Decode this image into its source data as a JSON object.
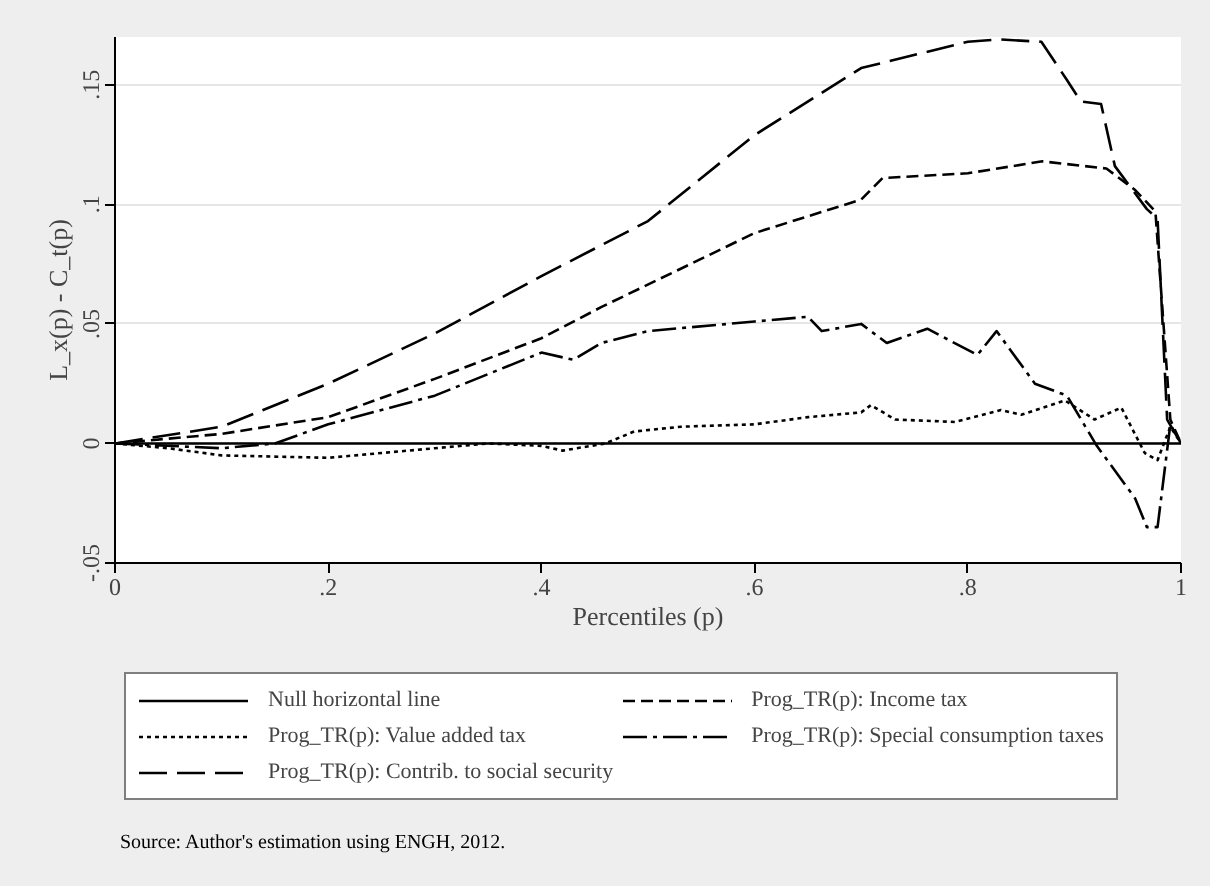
{
  "chart_data": {
    "type": "line",
    "xlabel": "Percentiles (p)",
    "ylabel": "L_x(p) - C_t(p)",
    "xlim": [
      0,
      1
    ],
    "ylim": [
      -0.05,
      0.17
    ],
    "xticks": [
      {
        "value": 0,
        "label": "0"
      },
      {
        "value": 0.2,
        "label": ".2"
      },
      {
        "value": 0.4,
        "label": ".4"
      },
      {
        "value": 0.6,
        "label": ".6"
      },
      {
        "value": 0.8,
        "label": ".8"
      },
      {
        "value": 1,
        "label": "1"
      }
    ],
    "yticks": [
      {
        "value": -0.05,
        "label": "-.05"
      },
      {
        "value": 0,
        "label": "0"
      },
      {
        "value": 0.05,
        "label": ".05"
      },
      {
        "value": 0.1,
        "label": ".1"
      },
      {
        "value": 0.15,
        "label": ".15"
      }
    ],
    "grid": "y",
    "legend": "bottom",
    "marker": "none",
    "annotations": [
      "Source: Author's estimation using ENGH, 2012."
    ],
    "series": [
      {
        "name": "Null horizontal line",
        "color": "#000000",
        "line_style": "solid",
        "x": [
          0,
          1
        ],
        "values": [
          0,
          0
        ]
      },
      {
        "name": "Prog_TR(p): Income tax",
        "color": "#000000",
        "line_style": "dashed",
        "x": [
          0,
          0.1,
          0.2,
          0.3,
          0.4,
          0.456,
          0.6,
          0.7,
          0.72,
          0.8,
          0.87,
          0.93,
          0.957,
          0.976,
          0.99,
          1
        ],
        "values": [
          0,
          0.004,
          0.011,
          0.027,
          0.044,
          0.057,
          0.088,
          0.102,
          0.111,
          0.113,
          0.118,
          0.115,
          0.106,
          0.097,
          0.01,
          0
        ]
      },
      {
        "name": "Prog_TR(p): Value added tax",
        "color": "#000000",
        "line_style": "dotted",
        "x": [
          0,
          0.05,
          0.1,
          0.2,
          0.3,
          0.35,
          0.4,
          0.42,
          0.46,
          0.487,
          0.531,
          0.6,
          0.65,
          0.7,
          0.709,
          0.732,
          0.788,
          0.831,
          0.85,
          0.891,
          0.919,
          0.944,
          0.966,
          0.978,
          0.99,
          1
        ],
        "values": [
          0,
          -0.002,
          -0.005,
          -0.006,
          -0.002,
          0,
          -0.001,
          -0.003,
          0,
          0.005,
          0.007,
          0.008,
          0.011,
          0.013,
          0.016,
          0.01,
          0.009,
          0.014,
          0.012,
          0.018,
          0.01,
          0.015,
          -0.004,
          -0.007,
          0.007,
          0
        ]
      },
      {
        "name": "Prog_TR(p): Special consumption taxes",
        "color": "#000000",
        "line_style": "dashdot",
        "x": [
          0,
          0.1,
          0.15,
          0.2,
          0.3,
          0.4,
          0.43,
          0.456,
          0.5,
          0.6,
          0.65,
          0.663,
          0.7,
          0.724,
          0.762,
          0.809,
          0.827,
          0.863,
          0.893,
          0.921,
          0.957,
          0.968,
          0.978,
          0.99,
          1
        ],
        "values": [
          0,
          -0.002,
          0,
          0.008,
          0.02,
          0.038,
          0.035,
          0.042,
          0.047,
          0.051,
          0.053,
          0.047,
          0.05,
          0.042,
          0.048,
          0.037,
          0.047,
          0.025,
          0.02,
          -0.001,
          -0.023,
          -0.035,
          -0.035,
          0.008,
          0
        ]
      },
      {
        "name": "Prog_TR(p): Contrib. to social security",
        "color": "#000000",
        "line_style": "longdash",
        "x": [
          0,
          0.1,
          0.2,
          0.3,
          0.4,
          0.5,
          0.6,
          0.7,
          0.8,
          0.83,
          0.869,
          0.893,
          0.906,
          0.925,
          0.938,
          0.968,
          0.978,
          0.987,
          1
        ],
        "values": [
          0,
          0.007,
          0.025,
          0.046,
          0.07,
          0.093,
          0.129,
          0.157,
          0.168,
          0.169,
          0.168,
          0.152,
          0.143,
          0.142,
          0.116,
          0.098,
          0.094,
          0.01,
          0
        ]
      }
    ]
  }
}
